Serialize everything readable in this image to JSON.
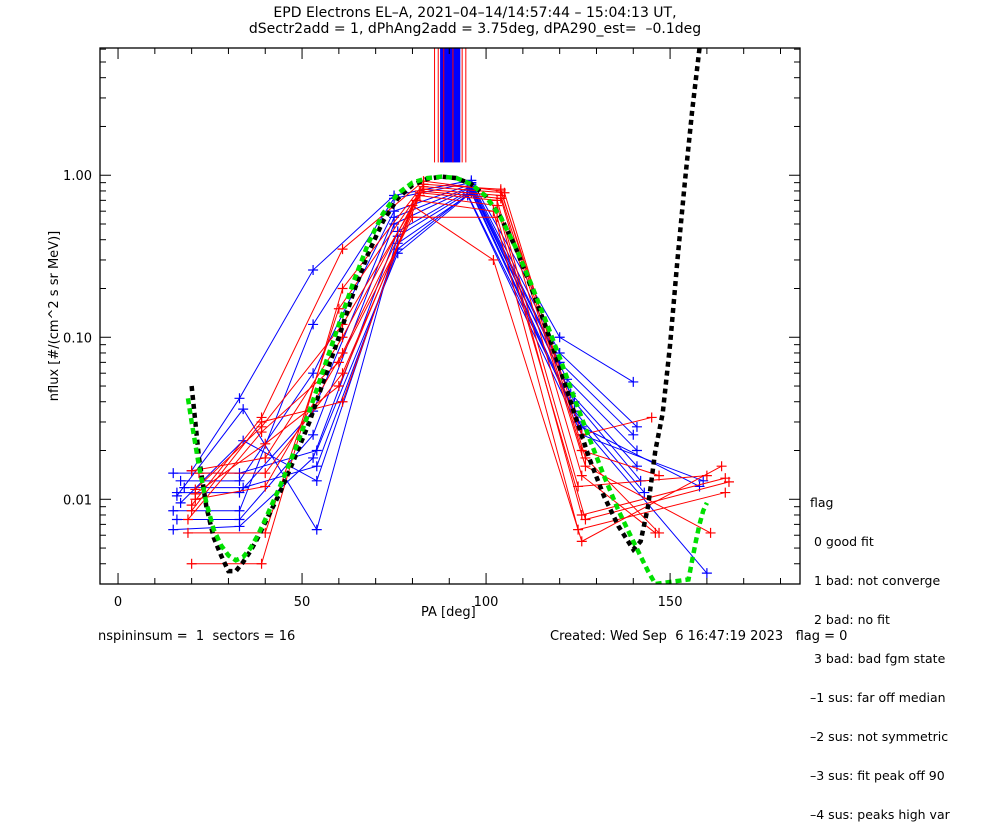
{
  "chart_data": {
    "type": "line",
    "title": "EPD Electrons EL–A, 2021–04–14/14:57:44 – 15:04:13 UT,",
    "subtitle": "dSectr2add = 1, dPhAng2add = 3.75deg, dPA290_est=  –0.1deg",
    "xlabel": "PA [deg]",
    "ylabel": "nflux [#/(cm^2 s sr MeV)]",
    "xlim": [
      -4.9,
      185.3
    ],
    "ylim": [
      0.003,
      6.1
    ],
    "yscale": "log",
    "grid": false,
    "x_ticks": [
      0,
      50,
      100,
      150
    ],
    "x_tick_labels": [
      "0",
      "50",
      "100",
      "150"
    ],
    "x_minor_step": 10,
    "y_ticks": [
      0.01,
      0.1,
      1.0
    ],
    "y_tick_labels": [
      "0.01",
      "0.10",
      "1.00"
    ],
    "colors": {
      "red_series": "#ff0000",
      "blue_series": "#0000ff",
      "fit_curve": "#00e000",
      "model_curve": "#000000"
    },
    "peak_markers": {
      "red_x": [
        86,
        87,
        88.5,
        91,
        93.5,
        94.5
      ],
      "blue_band": [
        87.5,
        93
      ],
      "y_from": 1.2,
      "y_to": 6.1
    },
    "series": [
      {
        "name": "blue-1",
        "color": "blue",
        "x": [
          20,
          33,
          53,
          75,
          96,
          120,
          140
        ],
        "y": [
          0.015,
          0.042,
          0.26,
          0.75,
          0.93,
          0.1,
          0.053
        ]
      },
      {
        "name": "blue-2",
        "color": "blue",
        "x": [
          15,
          33,
          53,
          75,
          96,
          120,
          141
        ],
        "y": [
          0.0085,
          0.0085,
          0.12,
          0.72,
          0.9,
          0.08,
          0.028
        ]
      },
      {
        "name": "blue-3",
        "color": "blue",
        "x": [
          17,
          33,
          53,
          75,
          96,
          120,
          140
        ],
        "y": [
          0.013,
          0.013,
          0.06,
          0.6,
          0.88,
          0.07,
          0.025
        ]
      },
      {
        "name": "blue-4",
        "color": "blue",
        "x": [
          16,
          33,
          53,
          75,
          96,
          122,
          141
        ],
        "y": [
          0.011,
          0.011,
          0.035,
          0.55,
          0.85,
          0.055,
          0.02
        ]
      },
      {
        "name": "blue-5",
        "color": "blue",
        "x": [
          16,
          33,
          53,
          75,
          96,
          123,
          141
        ],
        "y": [
          0.0075,
          0.0075,
          0.025,
          0.5,
          0.84,
          0.045,
          0.016
        ]
      },
      {
        "name": "blue-6",
        "color": "blue",
        "x": [
          15,
          33,
          53,
          76,
          96,
          124,
          142
        ],
        "y": [
          0.0065,
          0.0068,
          0.018,
          0.45,
          0.82,
          0.04,
          0.013
        ]
      },
      {
        "name": "blue-7",
        "color": "blue",
        "x": [
          16,
          34,
          54,
          76,
          96,
          124,
          143
        ],
        "y": [
          0.0105,
          0.036,
          0.0065,
          0.42,
          0.8,
          0.035,
          0.011
        ]
      },
      {
        "name": "blue-8",
        "color": "blue",
        "x": [
          17,
          34,
          54,
          76,
          96,
          125,
          160
        ],
        "y": [
          0.0095,
          0.023,
          0.013,
          0.38,
          0.78,
          0.03,
          0.0035
        ]
      },
      {
        "name": "blue-9",
        "color": "blue",
        "x": [
          18,
          34,
          54,
          76,
          95,
          126,
          158
        ],
        "y": [
          0.0118,
          0.0118,
          0.016,
          0.35,
          0.76,
          0.028,
          0.012
        ]
      },
      {
        "name": "blue-10",
        "color": "blue",
        "x": [
          15,
          33,
          54,
          76,
          95,
          126,
          159
        ],
        "y": [
          0.0145,
          0.0145,
          0.02,
          0.33,
          0.75,
          0.025,
          0.013
        ]
      },
      {
        "name": "red-1",
        "color": "red",
        "x": [
          20,
          39,
          61,
          83,
          104,
          126,
          145
        ],
        "y": [
          0.0092,
          0.032,
          0.35,
          0.92,
          0.8,
          0.025,
          0.032
        ]
      },
      {
        "name": "red-2",
        "color": "red",
        "x": [
          20,
          39,
          61,
          83,
          104,
          126,
          147
        ],
        "y": [
          0.004,
          0.004,
          0.2,
          0.88,
          0.82,
          0.02,
          0.014
        ]
      },
      {
        "name": "red-3",
        "color": "red",
        "x": [
          19,
          40,
          60,
          83,
          105,
          127,
          147
        ],
        "y": [
          0.0062,
          0.0062,
          0.15,
          0.85,
          0.78,
          0.018,
          0.0062
        ]
      },
      {
        "name": "red-4",
        "color": "red",
        "x": [
          21,
          39,
          61,
          83,
          104,
          127,
          161
        ],
        "y": [
          0.0115,
          0.028,
          0.12,
          0.82,
          0.75,
          0.016,
          0.0062
        ]
      },
      {
        "name": "red-5",
        "color": "red",
        "x": [
          20,
          40,
          61,
          82,
          104,
          126,
          146
        ],
        "y": [
          0.015,
          0.018,
          0.1,
          0.8,
          0.72,
          0.014,
          0.0062
        ]
      },
      {
        "name": "red-6",
        "color": "red",
        "x": [
          21,
          40,
          61,
          82,
          103,
          125,
          160
        ],
        "y": [
          0.01,
          0.012,
          0.08,
          0.78,
          0.7,
          0.012,
          0.014
        ]
      },
      {
        "name": "red-7",
        "color": "red",
        "x": [
          22,
          40,
          61,
          82,
          103,
          126,
          165
        ],
        "y": [
          0.0145,
          0.0145,
          0.06,
          0.75,
          0.65,
          0.008,
          0.0135
        ]
      },
      {
        "name": "red-8",
        "color": "red",
        "x": [
          21,
          40,
          60,
          81,
          102,
          125,
          165
        ],
        "y": [
          0.0108,
          0.022,
          0.05,
          0.7,
          0.6,
          0.0065,
          0.011
        ]
      },
      {
        "name": "red-9",
        "color": "red",
        "x": [
          20,
          39,
          61,
          80,
          102,
          126,
          164
        ],
        "y": [
          0.0085,
          0.03,
          0.04,
          0.65,
          0.3,
          0.0055,
          0.016
        ]
      },
      {
        "name": "red-10",
        "color": "red",
        "x": [
          19,
          39,
          60,
          80,
          103,
          127,
          166
        ],
        "y": [
          0.0075,
          0.026,
          0.07,
          0.55,
          0.55,
          0.0075,
          0.0128
        ]
      }
    ],
    "fit_curve": {
      "name": "green fit",
      "x": [
        19,
        20,
        22,
        24,
        26,
        28,
        30,
        32,
        34,
        36,
        38,
        40,
        44,
        48,
        52,
        56,
        60,
        64,
        68,
        72,
        76,
        80,
        84,
        88,
        92,
        96,
        100,
        104,
        108,
        112,
        116,
        120,
        124,
        128,
        132,
        136,
        140,
        144,
        146,
        155,
        156,
        157,
        158,
        159,
        160
      ],
      "y": [
        0.042,
        0.03,
        0.016,
        0.0095,
        0.0065,
        0.0052,
        0.0045,
        0.0042,
        0.0044,
        0.005,
        0.006,
        0.0075,
        0.012,
        0.02,
        0.035,
        0.065,
        0.12,
        0.22,
        0.38,
        0.58,
        0.77,
        0.9,
        0.96,
        0.98,
        0.96,
        0.88,
        0.74,
        0.55,
        0.36,
        0.22,
        0.13,
        0.075,
        0.042,
        0.024,
        0.014,
        0.0085,
        0.0055,
        0.0036,
        0.003,
        0.0032,
        0.0042,
        0.0055,
        0.007,
        0.0085,
        0.0095
      ]
    },
    "model_curve": {
      "name": "black model",
      "x": [
        20,
        22,
        24,
        26,
        28,
        30,
        32,
        34,
        36,
        38,
        40,
        44,
        48,
        52,
        56,
        60,
        64,
        68,
        72,
        76,
        80,
        84,
        88,
        92,
        96,
        100,
        104,
        108,
        112,
        116,
        120,
        124,
        128,
        132,
        136,
        140,
        142,
        144,
        146,
        148,
        150,
        152,
        154,
        156,
        158
      ],
      "y": [
        0.05,
        0.018,
        0.009,
        0.0058,
        0.0045,
        0.0036,
        0.0036,
        0.0041,
        0.0048,
        0.0058,
        0.0072,
        0.011,
        0.018,
        0.03,
        0.055,
        0.1,
        0.19,
        0.33,
        0.52,
        0.72,
        0.87,
        0.95,
        0.98,
        0.96,
        0.88,
        0.74,
        0.55,
        0.36,
        0.21,
        0.12,
        0.065,
        0.034,
        0.018,
        0.0105,
        0.0068,
        0.0049,
        0.0055,
        0.009,
        0.02,
        0.034,
        0.09,
        0.3,
        0.9,
        2.5,
        6.1
      ]
    }
  },
  "legend": {
    "title": "flag",
    "items": [
      " 0 good fit",
      " 1 bad: not converge",
      " 2 bad: no fit",
      " 3 bad: bad fgm state",
      "–1 sus: far off median",
      "–2 sus: not symmetric",
      "–3 sus: fit peak off 90",
      "–4 sus: peaks high var"
    ]
  },
  "footer": {
    "left": "nspininsum =  1  sectors = 16",
    "right": "Created: Wed Sep  6 16:47:19 2023   flag = 0"
  }
}
